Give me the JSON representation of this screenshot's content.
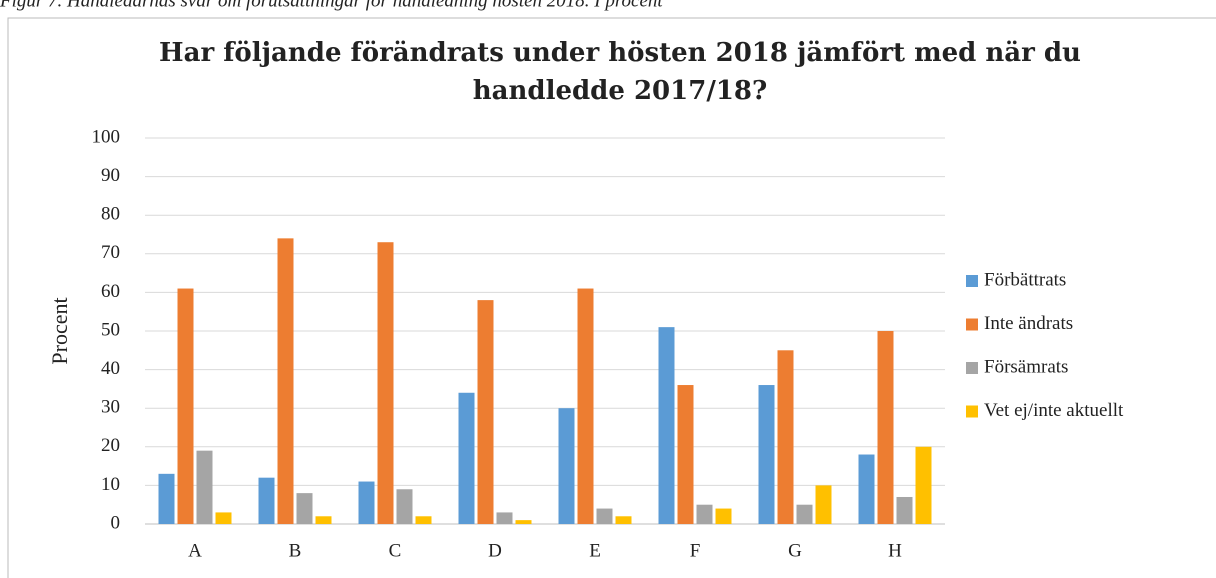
{
  "caption": "Figur 7. Handledarnas svar om förutsättningar för handledning hösten 2018. I procent",
  "chart_data": {
    "type": "bar",
    "title": [
      "Har följande förändrats under hösten 2018 jämfört med när du",
      "handledde 2017/18?"
    ],
    "y_label": "Procent",
    "categories": [
      "A",
      "B",
      "C",
      "D",
      "E",
      "F",
      "G",
      "H"
    ],
    "series": [
      {
        "name": "Förbättrats",
        "color": "#5b9bd5",
        "values": [
          13,
          12,
          11,
          34,
          30,
          51,
          36,
          18
        ]
      },
      {
        "name": "Inte ändrats",
        "color": "#ed7d31",
        "values": [
          61,
          74,
          73,
          58,
          61,
          36,
          45,
          50
        ]
      },
      {
        "name": "Försämrats",
        "color": "#a5a5a5",
        "values": [
          19,
          8,
          9,
          3,
          4,
          5,
          5,
          7
        ]
      },
      {
        "name": "Vet ej/inte aktuellt",
        "color": "#ffc000",
        "values": [
          3,
          2,
          2,
          1,
          2,
          4,
          10,
          20
        ]
      }
    ],
    "ylim": [
      0,
      100
    ],
    "yticks": [
      0,
      10,
      20,
      30,
      40,
      50,
      60,
      70,
      80,
      90,
      100
    ],
    "grid": true,
    "legend": "right"
  }
}
